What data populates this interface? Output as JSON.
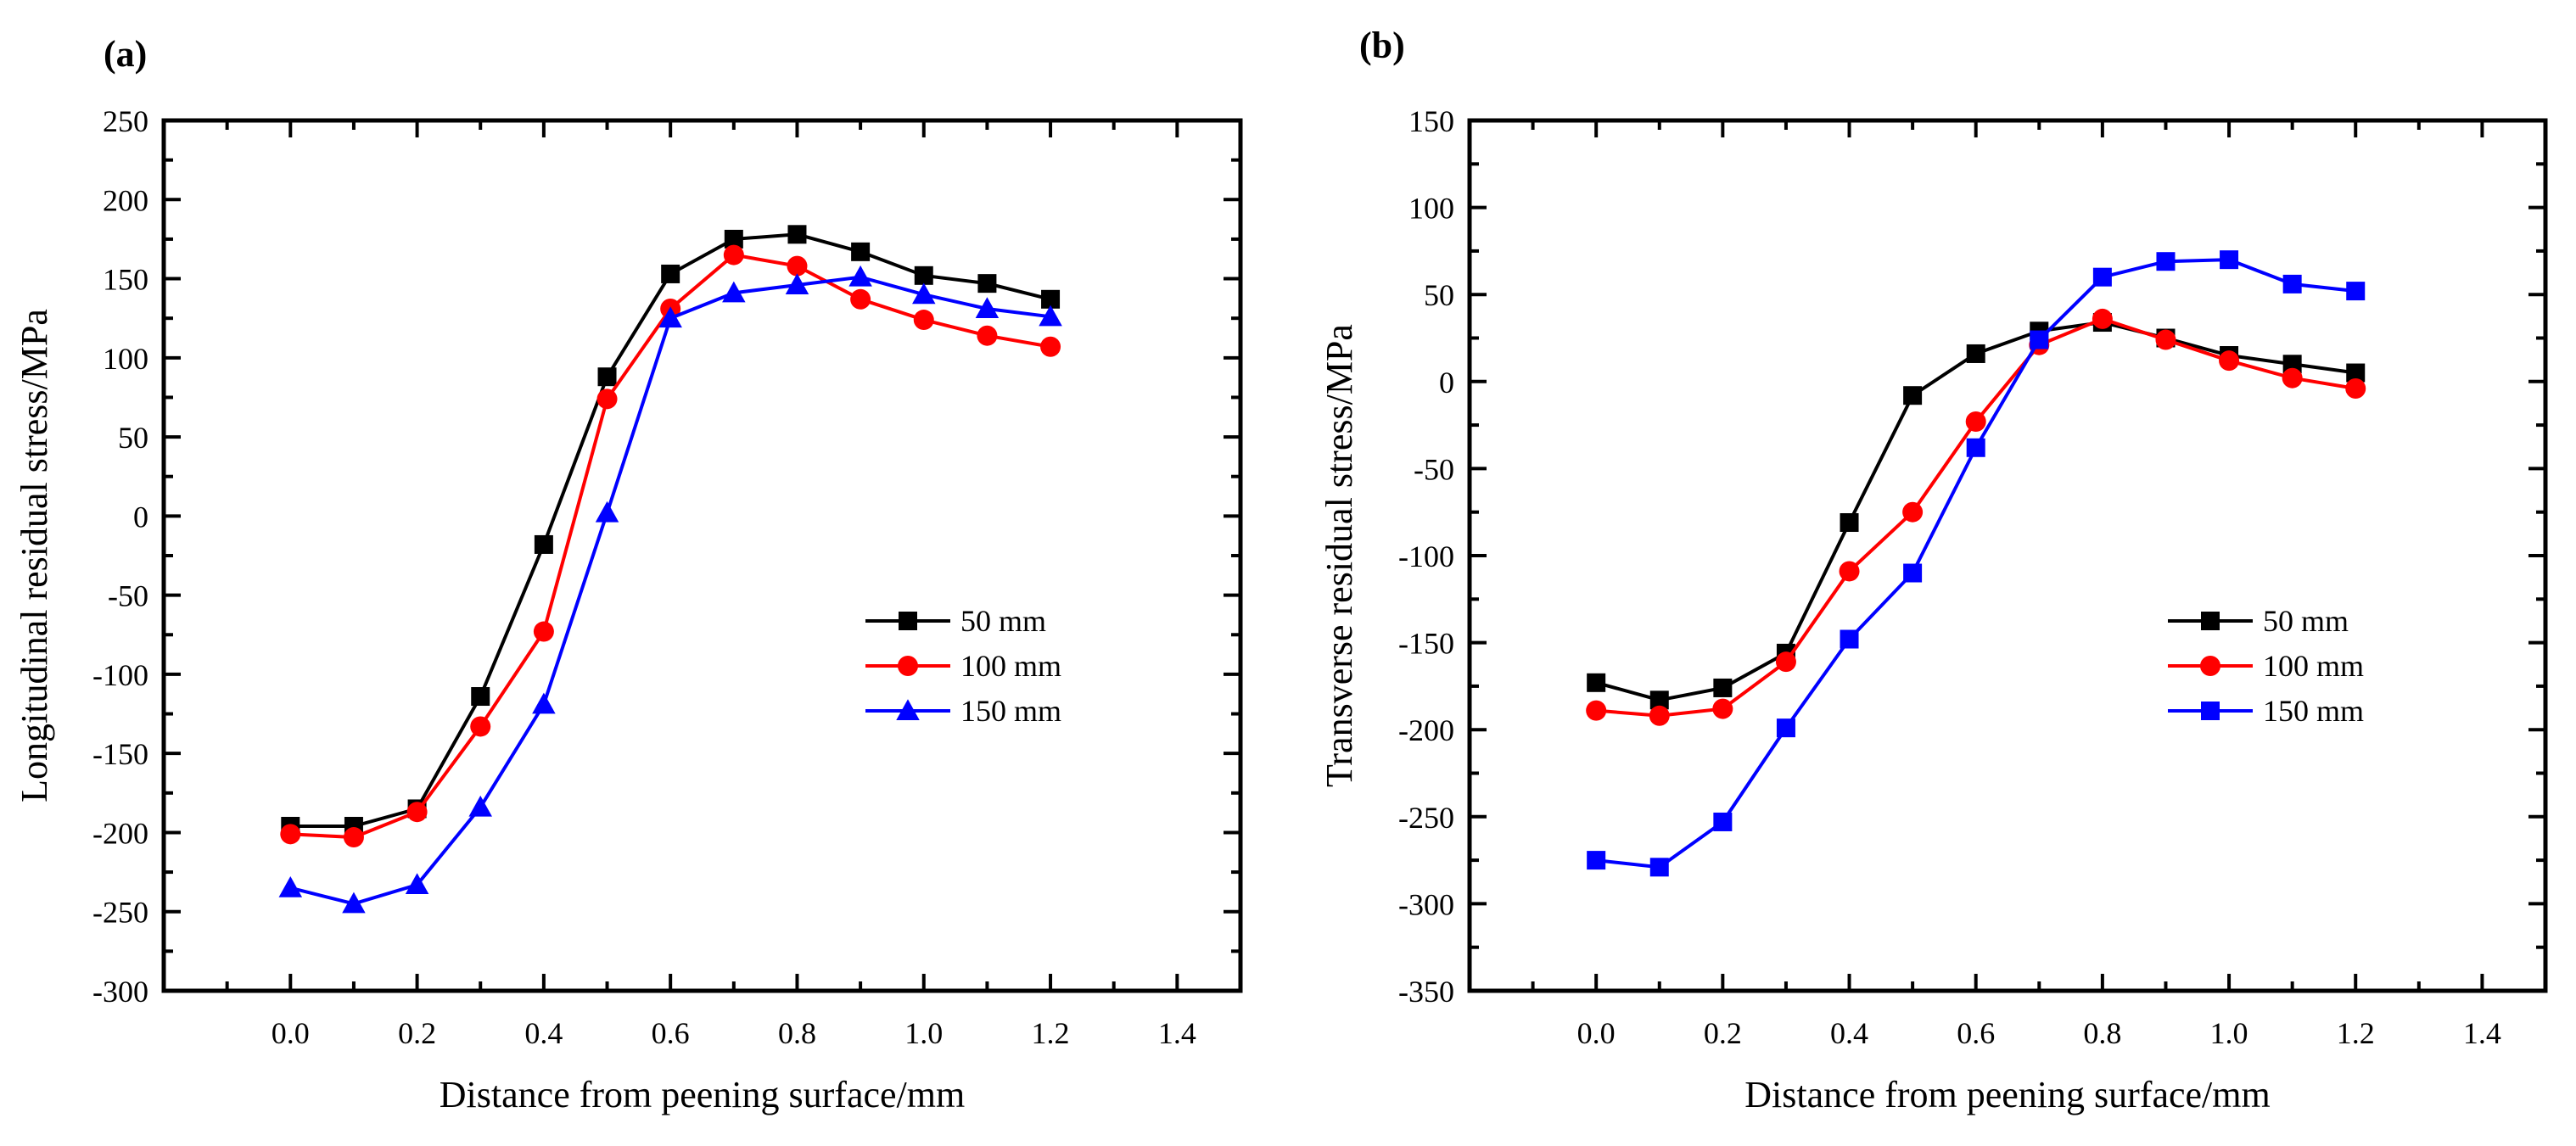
{
  "chart_data": [
    {
      "type": "line",
      "panel_label": "(a)",
      "xlabel": "Distance from peening surface/mm",
      "ylabel": "Longitudinal residual stress/MPa",
      "xlim": [
        -0.2,
        1.5
      ],
      "ylim": [
        -300,
        250
      ],
      "xticks": [
        "0.0",
        "0.2",
        "0.4",
        "0.6",
        "0.8",
        "1.0",
        "1.2",
        "1.4"
      ],
      "xtick_values": [
        0.0,
        0.2,
        0.4,
        0.6,
        0.8,
        1.0,
        1.2,
        1.4
      ],
      "yticks": [
        "250",
        "200",
        "150",
        "100",
        "50",
        "0",
        "-50",
        "-100",
        "-150",
        "-200",
        "-250",
        "-300"
      ],
      "ytick_values": [
        250,
        200,
        150,
        100,
        50,
        0,
        -50,
        -100,
        -150,
        -200,
        -250,
        -300
      ],
      "x": [
        0.0,
        0.1,
        0.2,
        0.3,
        0.4,
        0.5,
        0.6,
        0.7,
        0.8,
        0.9,
        1.0,
        1.1,
        1.2
      ],
      "legend_position": "center-right",
      "series": [
        {
          "name": "50 mm",
          "color": "#000000",
          "marker": "square",
          "values": [
            -196,
            -196,
            -185,
            -114,
            -18,
            88,
            153,
            175,
            178,
            167,
            152,
            147,
            137
          ]
        },
        {
          "name": "100 mm",
          "color": "#ff0000",
          "marker": "circle",
          "values": [
            -201,
            -203,
            -187,
            -133,
            -73,
            74,
            131,
            165,
            158,
            137,
            124,
            114,
            107
          ]
        },
        {
          "name": "150 mm",
          "color": "#0000ff",
          "marker": "triangle",
          "values": [
            -235,
            -245,
            -233,
            -184,
            -119,
            2,
            125,
            141,
            146,
            151,
            140,
            131,
            126
          ]
        }
      ]
    },
    {
      "type": "line",
      "panel_label": "(b)",
      "xlabel": "Distance from peening surface/mm",
      "ylabel": "Transverse residual stress/MPa",
      "xlim": [
        -0.2,
        1.5
      ],
      "ylim": [
        -350,
        150
      ],
      "xticks": [
        "0.0",
        "0.2",
        "0.4",
        "0.6",
        "0.8",
        "1.0",
        "1.2",
        "1.4"
      ],
      "xtick_values": [
        0.0,
        0.2,
        0.4,
        0.6,
        0.8,
        1.0,
        1.2,
        1.4
      ],
      "yticks": [
        "150",
        "100",
        "50",
        "0",
        "-50",
        "-100",
        "-150",
        "-200",
        "-250",
        "-300",
        "-350"
      ],
      "ytick_values": [
        150,
        100,
        50,
        0,
        -50,
        -100,
        -150,
        -200,
        -250,
        -300,
        -350
      ],
      "x": [
        0.0,
        0.1,
        0.2,
        0.3,
        0.4,
        0.5,
        0.6,
        0.7,
        0.8,
        0.9,
        1.0,
        1.1,
        1.2
      ],
      "legend_position": "center-right",
      "series": [
        {
          "name": "50 mm",
          "color": "#000000",
          "marker": "square",
          "values": [
            -173,
            -183,
            -176,
            -156,
            -81,
            -8,
            16,
            29,
            34,
            25,
            15,
            10,
            5
          ]
        },
        {
          "name": "100 mm",
          "color": "#ff0000",
          "marker": "circle",
          "values": [
            -189,
            -192,
            -188,
            -161,
            -109,
            -75,
            -23,
            21,
            36,
            24,
            12,
            2,
            -4
          ]
        },
        {
          "name": "150 mm",
          "color": "#0000ff",
          "marker": "square",
          "values": [
            -275,
            -279,
            -253,
            -199,
            -148,
            -110,
            -38,
            24,
            60,
            69,
            70,
            56,
            52
          ]
        }
      ]
    }
  ]
}
